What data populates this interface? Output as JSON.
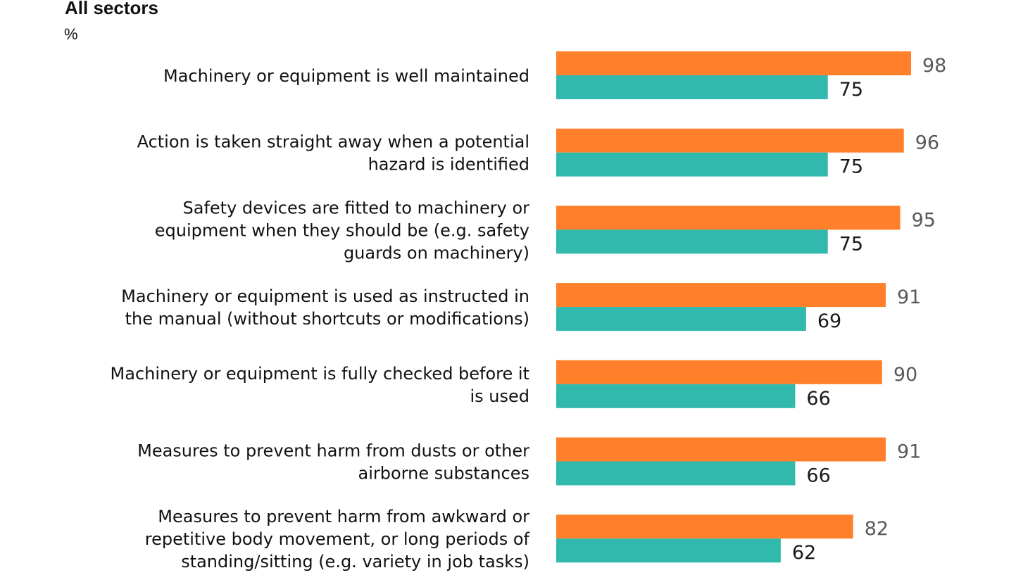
{
  "chart_data": {
    "type": "bar",
    "orientation": "horizontal",
    "title": "All sectors",
    "unit_label": "%",
    "xlim": [
      0,
      100
    ],
    "grid": false,
    "categories": [
      [
        "Machinery or equipment is well maintained"
      ],
      [
        "Action is taken straight away when a potential",
        "hazard is identified"
      ],
      [
        "Safety devices are fitted to machinery or",
        "equipment when they should be (e.g. safety",
        "guards on machinery)"
      ],
      [
        "Machinery or equipment is used as instructed in",
        "the manual (without shortcuts or modifications)"
      ],
      [
        "Machinery or equipment is fully checked before it",
        "is used"
      ],
      [
        "Measures to prevent harm from dusts or other",
        "airborne substances"
      ],
      [
        "Measures to prevent harm from awkward or",
        "repetitive body movement, or long periods of",
        "standing/sitting (e.g. variety in job tasks)"
      ]
    ],
    "series": [
      {
        "name": "series-1",
        "color": "#FF7F2A",
        "label_color": "#595959",
        "values": [
          98,
          96,
          95,
          91,
          90,
          91,
          82
        ]
      },
      {
        "name": "series-2",
        "color": "#31B9AD",
        "label_color": "#1a1a1a",
        "values": [
          75,
          75,
          75,
          69,
          66,
          66,
          62
        ]
      }
    ]
  }
}
